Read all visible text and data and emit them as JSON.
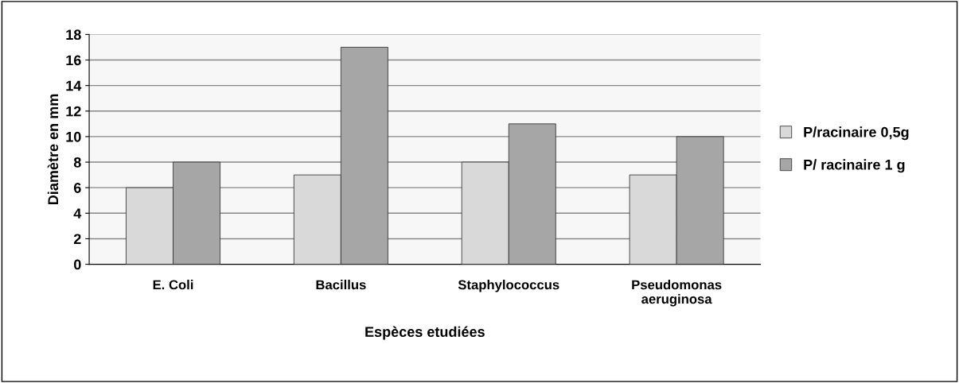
{
  "chart_data": {
    "type": "bar",
    "xlabel": "Espèces etudiées",
    "ylabel": "Diamètre en mm",
    "categories": [
      "E. Coli",
      "Bacillus",
      "Staphylococcus",
      "Pseudomonas\naeruginosa"
    ],
    "series": [
      {
        "name": "P/racinaire 0,5g",
        "color": "#d9d9d9",
        "values": [
          6,
          7,
          8,
          7
        ]
      },
      {
        "name": "P/ racinaire 1 g",
        "color": "#a6a6a6",
        "values": [
          8,
          17,
          11,
          10
        ]
      }
    ],
    "ylim": [
      0,
      18
    ],
    "yticks": [
      0,
      2,
      4,
      6,
      8,
      10,
      12,
      14,
      16,
      18
    ],
    "grid": "y",
    "legend": "right"
  }
}
